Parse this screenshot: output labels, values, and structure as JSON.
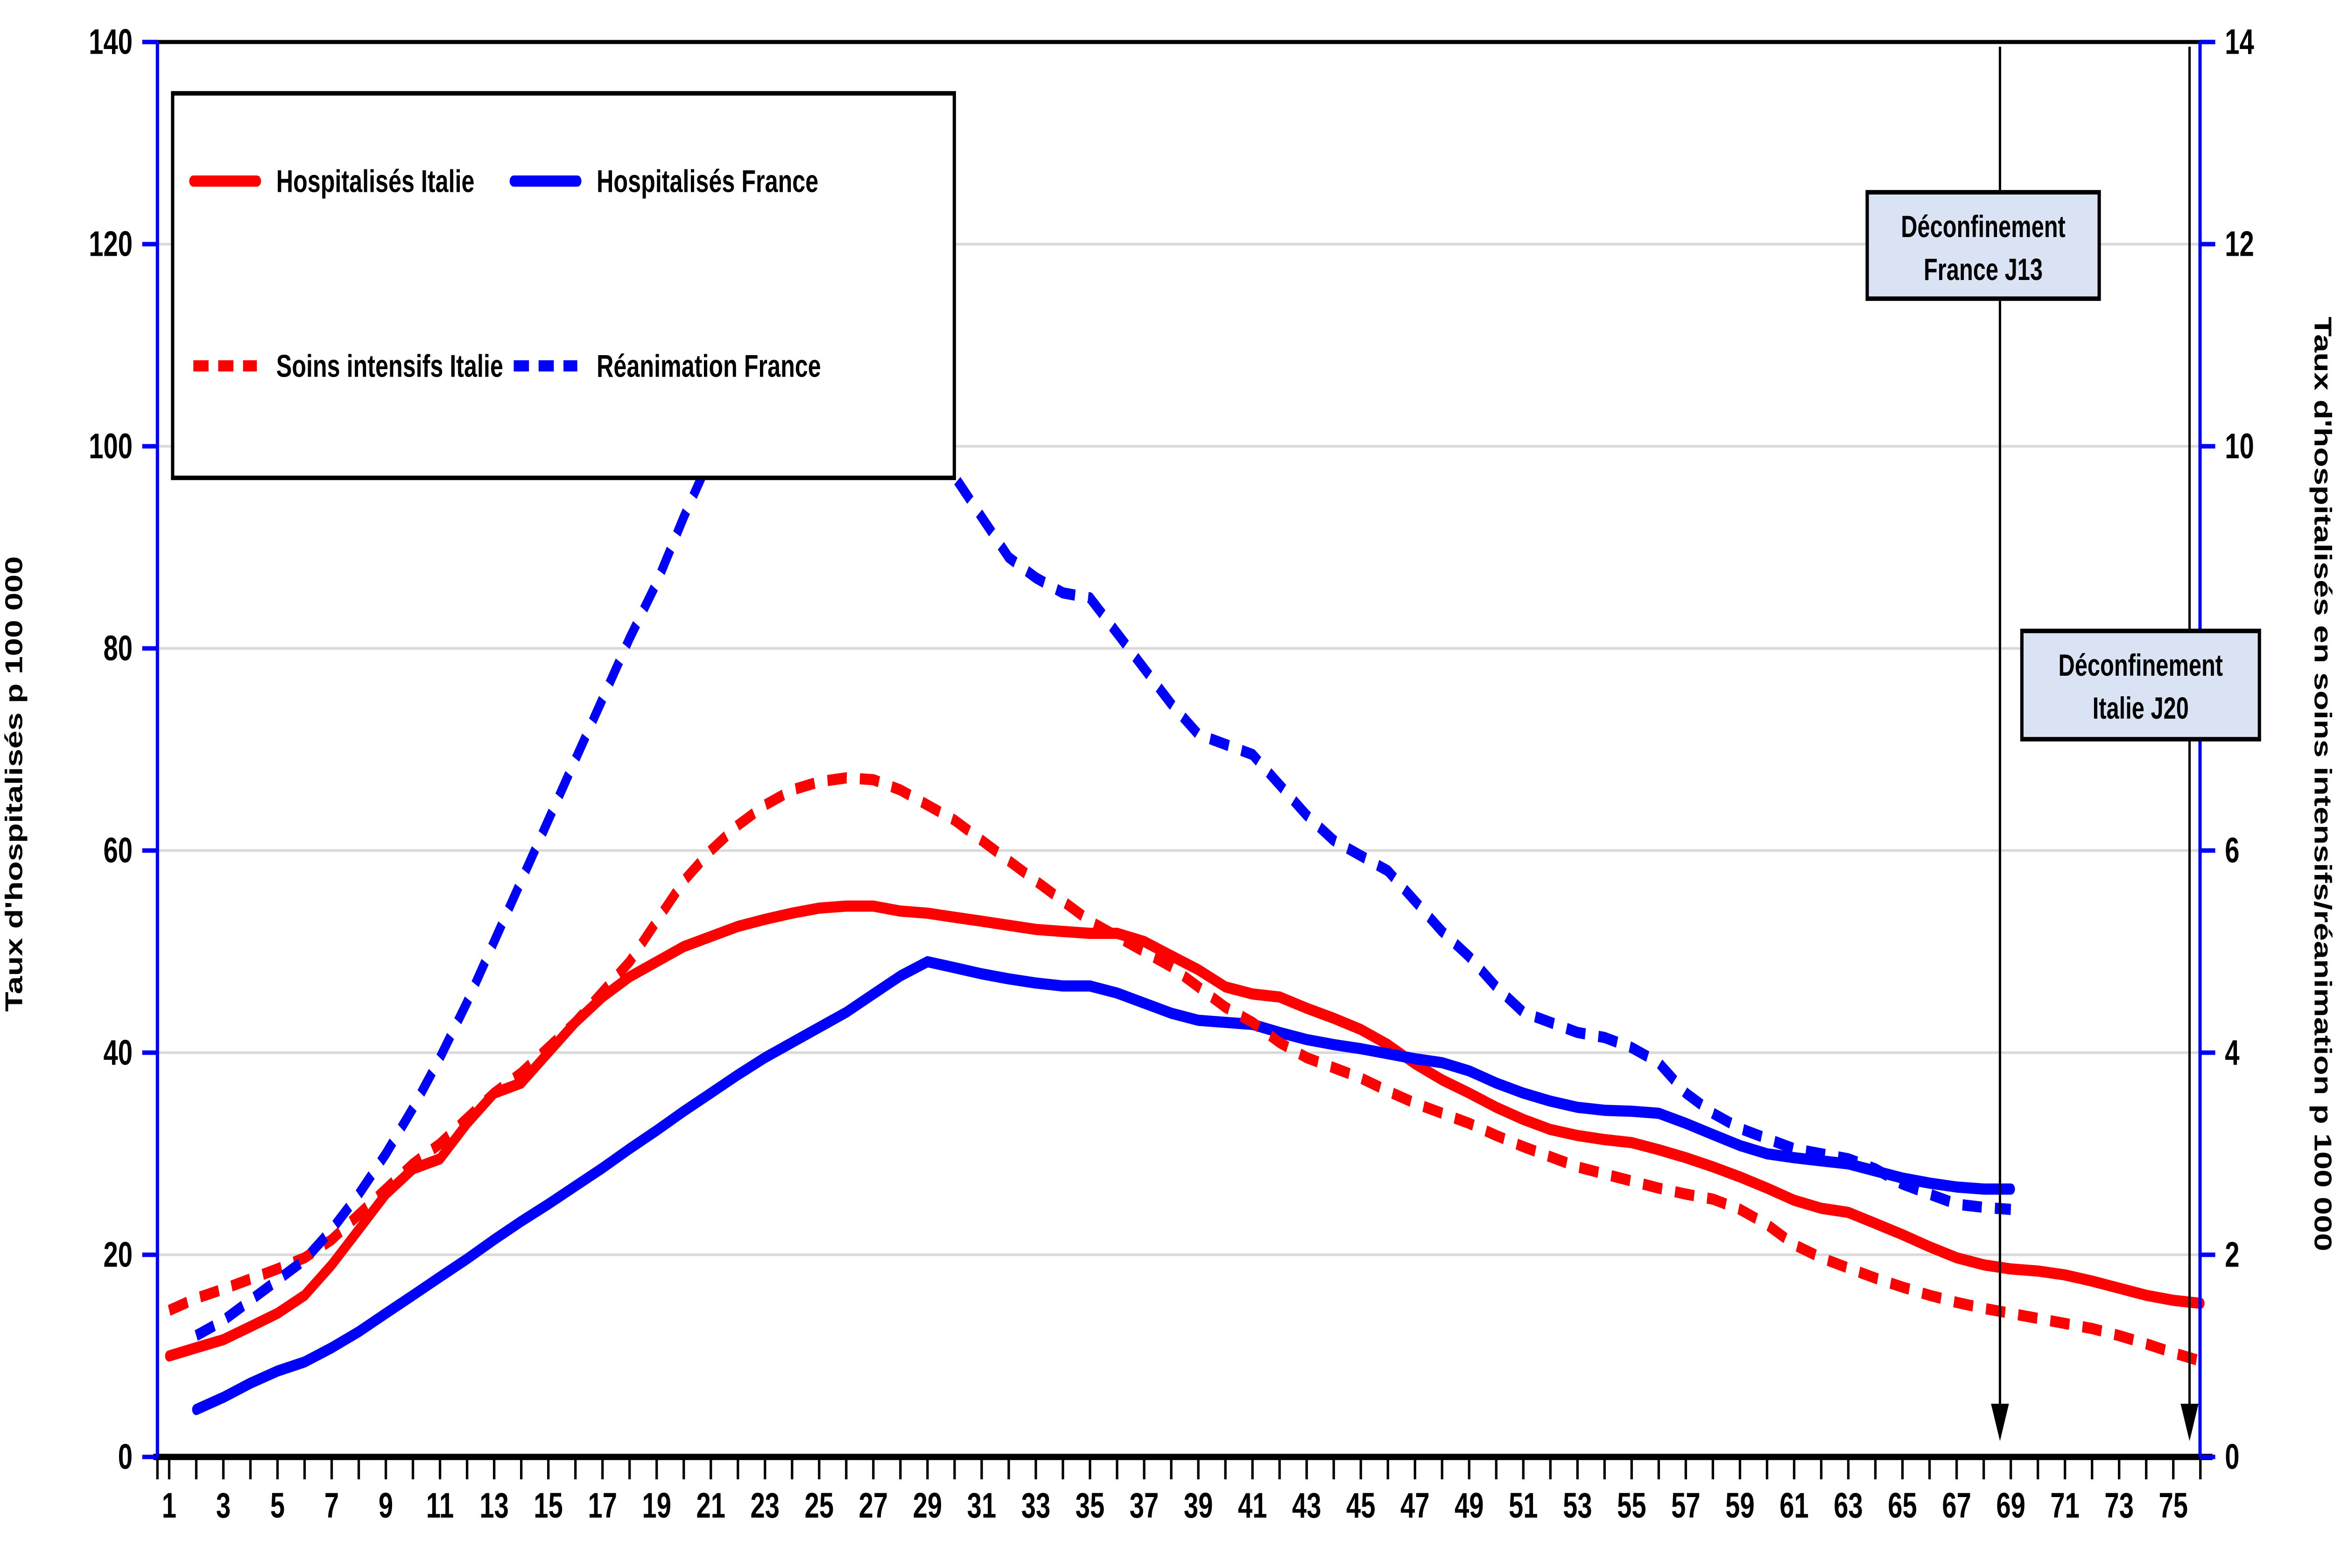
{
  "chart_data": {
    "type": "line",
    "title": "",
    "x_range": {
      "start": 1,
      "end": 76
    },
    "x_tick_labels": [
      1,
      3,
      5,
      7,
      9,
      11,
      13,
      15,
      17,
      19,
      21,
      23,
      25,
      27,
      29,
      31,
      33,
      35,
      37,
      39,
      41,
      43,
      45,
      47,
      49,
      51,
      53,
      55,
      57,
      59,
      61,
      63,
      65,
      67,
      69,
      71,
      73,
      75
    ],
    "axes": {
      "left": {
        "title": "Taux d'hospitalisés p 100 000",
        "min": 0,
        "max": 140,
        "step": 20,
        "tick_labels": [
          "0",
          "20",
          "40",
          "60",
          "80",
          "100",
          "120",
          "140"
        ],
        "line_color": "#0000ff",
        "label_color": "#000000"
      },
      "right": {
        "title": "Taux d'hospitalisés en soins intensifs/réanimation p 100 000",
        "min": 0,
        "max": 14,
        "step": 2,
        "tick_labels": [
          "0",
          "2",
          "4",
          "6",
          "8",
          "10",
          "12",
          "14"
        ],
        "line_color": "#0000ff",
        "label_color": "#000000"
      }
    },
    "grid": {
      "color": "#d9d9d9",
      "interval": 20,
      "top_border_color": "#000000"
    },
    "legend_position": "top-left",
    "series": [
      {
        "id": "hospitalises-italie",
        "name": "Hospitalisés Italie",
        "axis": "left",
        "color": "#ff0000",
        "style": "solid",
        "start_day": 1,
        "values": [
          10,
          10.8,
          11.6,
          12.9,
          14.2,
          16,
          19,
          22.5,
          26,
          28.5,
          29.5,
          33,
          36,
          37,
          40,
          43,
          45.5,
          47.5,
          49,
          50.5,
          51.5,
          52.5,
          53.2,
          53.8,
          54.3,
          54.5,
          54.5,
          54,
          53.8,
          53.4,
          53,
          52.6,
          52.2,
          52,
          51.8,
          51.8,
          51,
          49.6,
          48.2,
          46.5,
          45.8,
          45.5,
          44.4,
          43.4,
          42.3,
          40.8,
          38.9,
          37.3,
          36,
          34.6,
          33.4,
          32.4,
          31.8,
          31.4,
          31.1,
          30.4,
          29.6,
          28.7,
          27.7,
          26.6,
          25.4,
          24.6,
          24.2,
          23.1,
          22,
          20.8,
          19.7,
          19,
          18.6,
          18.4,
          18,
          17.4,
          16.7,
          16,
          15.5,
          15.2
        ]
      },
      {
        "id": "hospitalises-france",
        "name": "Hospitalisés France",
        "axis": "left",
        "color": "#0000ff",
        "style": "solid",
        "start_day": 2,
        "values": [
          4.7,
          5.9,
          7.3,
          8.5,
          9.4,
          10.8,
          12.4,
          14.2,
          16,
          17.8,
          19.6,
          21.5,
          23.3,
          25,
          26.8,
          28.6,
          30.5,
          32.3,
          34.2,
          36,
          37.8,
          39.5,
          41,
          42.5,
          44,
          45.8,
          47.6,
          49,
          48.4,
          47.8,
          47.3,
          46.9,
          46.6,
          46.6,
          45.9,
          44.9,
          43.9,
          43.2,
          43,
          42.8,
          42,
          41.3,
          40.8,
          40.4,
          39.9,
          39.4,
          39,
          38.2,
          37,
          36,
          35.2,
          34.6,
          34.3,
          34.2,
          34,
          33,
          31.9,
          30.8,
          30,
          29.6,
          29.3,
          29,
          28.3,
          27.6,
          27.1,
          26.7,
          26.5,
          26.5
        ]
      },
      {
        "id": "soins-intensifs-italie",
        "name": "Soins intensifs Italie",
        "axis": "right",
        "color": "#ff0000",
        "style": "dashed",
        "start_day": 1,
        "values": [
          1.45,
          1.57,
          1.66,
          1.76,
          1.86,
          1.97,
          2.15,
          2.4,
          2.65,
          2.9,
          3.1,
          3.35,
          3.6,
          3.8,
          4.05,
          4.3,
          4.6,
          4.9,
          5.3,
          5.7,
          6,
          6.25,
          6.45,
          6.6,
          6.68,
          6.72,
          6.7,
          6.6,
          6.45,
          6.3,
          6.1,
          5.9,
          5.7,
          5.5,
          5.3,
          5.15,
          5,
          4.85,
          4.65,
          4.45,
          4.3,
          4.1,
          3.95,
          3.85,
          3.75,
          3.62,
          3.5,
          3.4,
          3.3,
          3.18,
          3.07,
          2.97,
          2.87,
          2.8,
          2.73,
          2.66,
          2.6,
          2.55,
          2.45,
          2.3,
          2.1,
          1.97,
          1.87,
          1.77,
          1.68,
          1.6,
          1.53,
          1.47,
          1.42,
          1.37,
          1.32,
          1.27,
          1.2,
          1.12,
          1.03,
          0.95
        ]
      },
      {
        "id": "reanimation-france",
        "name": "Réanimation France",
        "axis": "right",
        "color": "#0000ff",
        "style": "dashed",
        "start_day": 2,
        "values": [
          1.2,
          1.35,
          1.55,
          1.75,
          1.95,
          2.25,
          2.6,
          3,
          3.45,
          3.95,
          4.5,
          5.1,
          5.7,
          6.3,
          6.9,
          7.5,
          8.1,
          8.65,
          9.3,
          9.9,
          10.4,
          10.65,
          10.6,
          10.45,
          10.3,
          10.2,
          10.15,
          10.05,
          9.7,
          9.3,
          8.9,
          8.7,
          8.55,
          8.5,
          8.15,
          7.8,
          7.45,
          7.15,
          7.05,
          6.95,
          6.65,
          6.35,
          6.1,
          5.95,
          5.8,
          5.5,
          5.2,
          4.95,
          4.65,
          4.4,
          4.3,
          4.2,
          4.15,
          4.05,
          3.9,
          3.6,
          3.4,
          3.25,
          3.15,
          3.05,
          3,
          2.95,
          2.85,
          2.7,
          2.6,
          2.5,
          2.47,
          2.45
        ]
      }
    ],
    "annotations": [
      {
        "id": "deconfinement-france",
        "line1": "Déconfinement",
        "line2": "France J13",
        "text_color": "#1a1ae0",
        "box_fill": "#dae3f3",
        "arrow_color": "#000000",
        "at_day": 68.6
      },
      {
        "id": "deconfinement-italie",
        "line1": "Déconfinement",
        "line2": "Italie J20",
        "text_color": "#ee1111",
        "box_fill": "#dae3f3",
        "arrow_color": "#000000",
        "at_day": 75.6
      }
    ]
  }
}
